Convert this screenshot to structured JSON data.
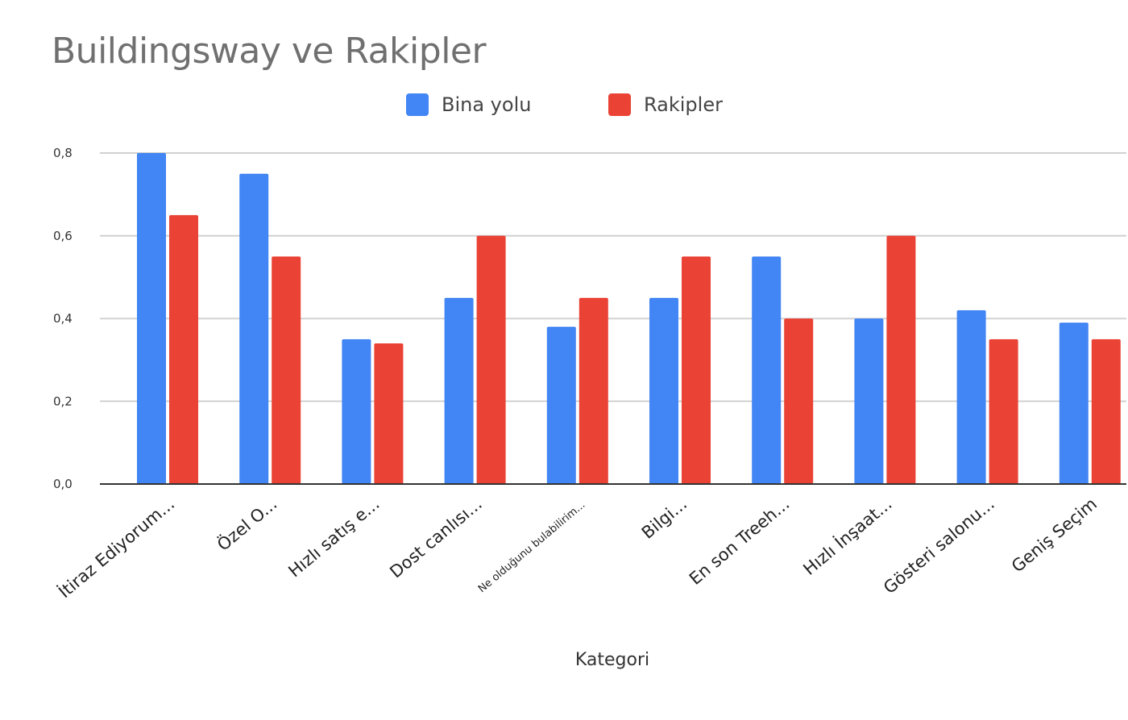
{
  "chart_data": {
    "type": "bar",
    "title": "Buildingsway ve Rakipler",
    "xlabel": "Kategori",
    "ylabel": "",
    "ylim": [
      0,
      0.8
    ],
    "y_ticks": [
      "0,0",
      "0,2",
      "0,4",
      "0,6",
      "0,8"
    ],
    "grid": true,
    "legend_position": "top",
    "categories": [
      "İtiraz Ediyorum...",
      "Özel O...",
      "Hızlı satış e...",
      "Dost canlısı...",
      "Ne olduğunu bulabilirim...",
      "Bilgi...",
      "En son Treeh...",
      "Hızlı İnşaat...",
      "Gösteri salonu...",
      "Geniş Seçim"
    ],
    "series": [
      {
        "name": "Bina yolu",
        "color": "#4285f4",
        "values": [
          0.8,
          0.75,
          0.35,
          0.45,
          0.38,
          0.45,
          0.55,
          0.4,
          0.42,
          0.39
        ]
      },
      {
        "name": "Rakipler",
        "color": "#ea4335",
        "values": [
          0.65,
          0.55,
          0.34,
          0.6,
          0.45,
          0.55,
          0.4,
          0.6,
          0.35,
          0.35
        ]
      }
    ]
  }
}
